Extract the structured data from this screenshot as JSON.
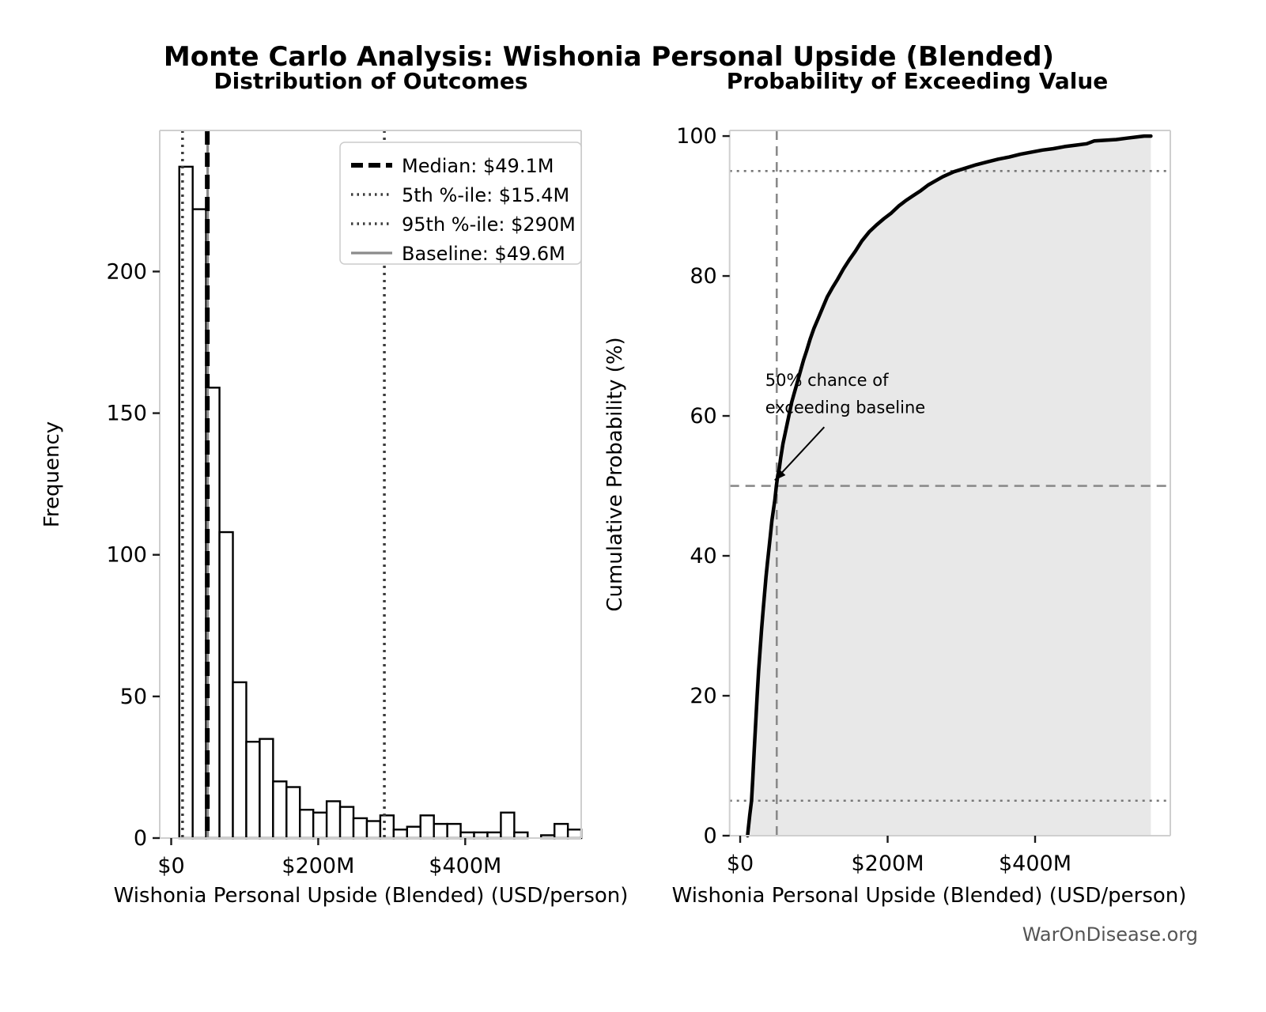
{
  "page": {
    "main_title": "Monte Carlo Analysis: Wishonia Personal Upside (Blended)",
    "watermark": "WarOnDisease.org"
  },
  "chart_data": [
    {
      "type": "bar",
      "title": "Distribution of Outcomes",
      "xlabel": "Wishonia Personal Upside (Blended) (USD/person)",
      "ylabel": "Frequency",
      "x_unit": "millions USD",
      "xlim": [
        -15.6,
        557.8
      ],
      "ylim": [
        0,
        249.8
      ],
      "grid": false,
      "x_ticks": [
        {
          "v": 0,
          "label": "$0"
        },
        {
          "v": 200,
          "label": "$200M"
        },
        {
          "v": 400,
          "label": "$400M"
        }
      ],
      "y_ticks": [
        {
          "v": 0,
          "label": "0"
        },
        {
          "v": 50,
          "label": "50"
        },
        {
          "v": 100,
          "label": "100"
        },
        {
          "v": 150,
          "label": "150"
        },
        {
          "v": 200,
          "label": "200"
        }
      ],
      "histogram": {
        "bin_start": 11,
        "bin_width": 18.23,
        "counts": [
          237,
          222,
          159,
          108,
          55,
          34,
          35,
          20,
          18,
          10,
          9,
          13,
          11,
          7,
          6,
          8,
          3,
          4,
          8,
          5,
          5,
          2,
          2,
          2,
          9,
          2,
          0,
          1,
          5,
          3
        ],
        "bar_fill": "#ffffff",
        "bar_edge": "#000000",
        "bar_edge_width": 2.4
      },
      "reference_lines": [
        {
          "id": "baseline",
          "legend_label": "Baseline: $49.6M",
          "value": 49.6,
          "style": "solid",
          "color": "#8a8a8a",
          "width": 3.2
        },
        {
          "id": "median",
          "legend_label": "Median: $49.1M",
          "value": 49.1,
          "style": "dashed",
          "color": "#000000",
          "width": 6
        },
        {
          "id": "p5",
          "legend_label": "5th %-ile: $15.4M",
          "value": 15.4,
          "style": "dotted",
          "color": "#3c3c3c",
          "width": 3.5
        },
        {
          "id": "p95",
          "legend_label": "95th %-ile: $290M",
          "value": 290,
          "style": "dotted",
          "color": "#3c3c3c",
          "width": 3.5
        }
      ],
      "legend": {
        "position": "upper right",
        "order": [
          "median",
          "p5",
          "p95",
          "baseline"
        ],
        "border_color": "#cccccc",
        "background": "#ffffff"
      }
    },
    {
      "type": "line",
      "title": "Probability of Exceeding Value",
      "xlabel": "Wishonia Personal Upside (Blended) (USD/person)",
      "ylabel": "Cumulative Probability (%)",
      "x_unit": "millions USD",
      "xlim": [
        -14.3,
        583.4
      ],
      "ylim": [
        0,
        100.8
      ],
      "grid": false,
      "x_ticks": [
        {
          "v": 0,
          "label": "$0"
        },
        {
          "v": 200,
          "label": "$200M"
        },
        {
          "v": 400,
          "label": "$400M"
        }
      ],
      "y_ticks": [
        {
          "v": 0,
          "label": "0"
        },
        {
          "v": 20,
          "label": "20"
        },
        {
          "v": 40,
          "label": "40"
        },
        {
          "v": 60,
          "label": "60"
        },
        {
          "v": 80,
          "label": "80"
        },
        {
          "v": 100,
          "label": "100"
        }
      ],
      "series": [
        {
          "name": "cumulative_probability",
          "color": "#000000",
          "line_width": 4.5,
          "fill_color": "#e8e8e8",
          "x": [
            10,
            11,
            13,
            15.4,
            17,
            19,
            21,
            23,
            25,
            27,
            29,
            31,
            33,
            35,
            37,
            39,
            41,
            43,
            45,
            47,
            49.1,
            51,
            53,
            55,
            58,
            61,
            64,
            67,
            70,
            74,
            78,
            82,
            86,
            90,
            95,
            100,
            106,
            112,
            118,
            125,
            132,
            140,
            148,
            156,
            165,
            175,
            185,
            195,
            205,
            215,
            225,
            235,
            245,
            255,
            265,
            275,
            290,
            305,
            320,
            335,
            350,
            365,
            380,
            395,
            410,
            425,
            440,
            455,
            470,
            480,
            495,
            510,
            525,
            540,
            548,
            557
          ],
          "y": [
            0,
            1,
            3,
            5,
            8,
            12,
            16,
            20,
            23.5,
            26.5,
            29.5,
            32,
            34.5,
            37,
            39,
            41,
            43,
            45,
            46.5,
            48,
            50,
            51.5,
            52.5,
            54,
            56,
            57.5,
            59,
            60.5,
            62,
            63.5,
            65,
            66.5,
            68,
            69.3,
            71,
            72.5,
            74,
            75.5,
            77,
            78.3,
            79.5,
            81,
            82.3,
            83.5,
            85,
            86.3,
            87.3,
            88.2,
            89,
            90,
            90.8,
            91.5,
            92.2,
            93,
            93.6,
            94.2,
            94.9,
            95.4,
            95.9,
            96.3,
            96.7,
            97,
            97.4,
            97.7,
            98,
            98.2,
            98.5,
            98.7,
            98.9,
            99.3,
            99.4,
            99.5,
            99.7,
            99.9,
            100,
            100
          ]
        }
      ],
      "h_lines": [
        {
          "id": "prob-50",
          "v": 50,
          "style": "dashed",
          "color": "#8a8a8a",
          "width": 2.6
        },
        {
          "id": "prob-95",
          "v": 95,
          "style": "dotted",
          "color": "#777777",
          "width": 2.6
        },
        {
          "id": "prob-5",
          "v": 5,
          "style": "dotted",
          "color": "#777777",
          "width": 2.6
        }
      ],
      "v_lines": [
        {
          "id": "baseline-value",
          "v": 49.6,
          "style": "dashed",
          "color": "#8a8a8a",
          "width": 2.6
        }
      ],
      "annotation": {
        "text_lines": [
          "50% chance of",
          "exceeding baseline"
        ],
        "text_xy": [
          34,
          64.3
        ],
        "line_step_pct": 3.9,
        "font_size": 21,
        "arrow_from": [
          114,
          58.4
        ],
        "arrow_to": [
          47,
          50.8
        ]
      }
    }
  ]
}
